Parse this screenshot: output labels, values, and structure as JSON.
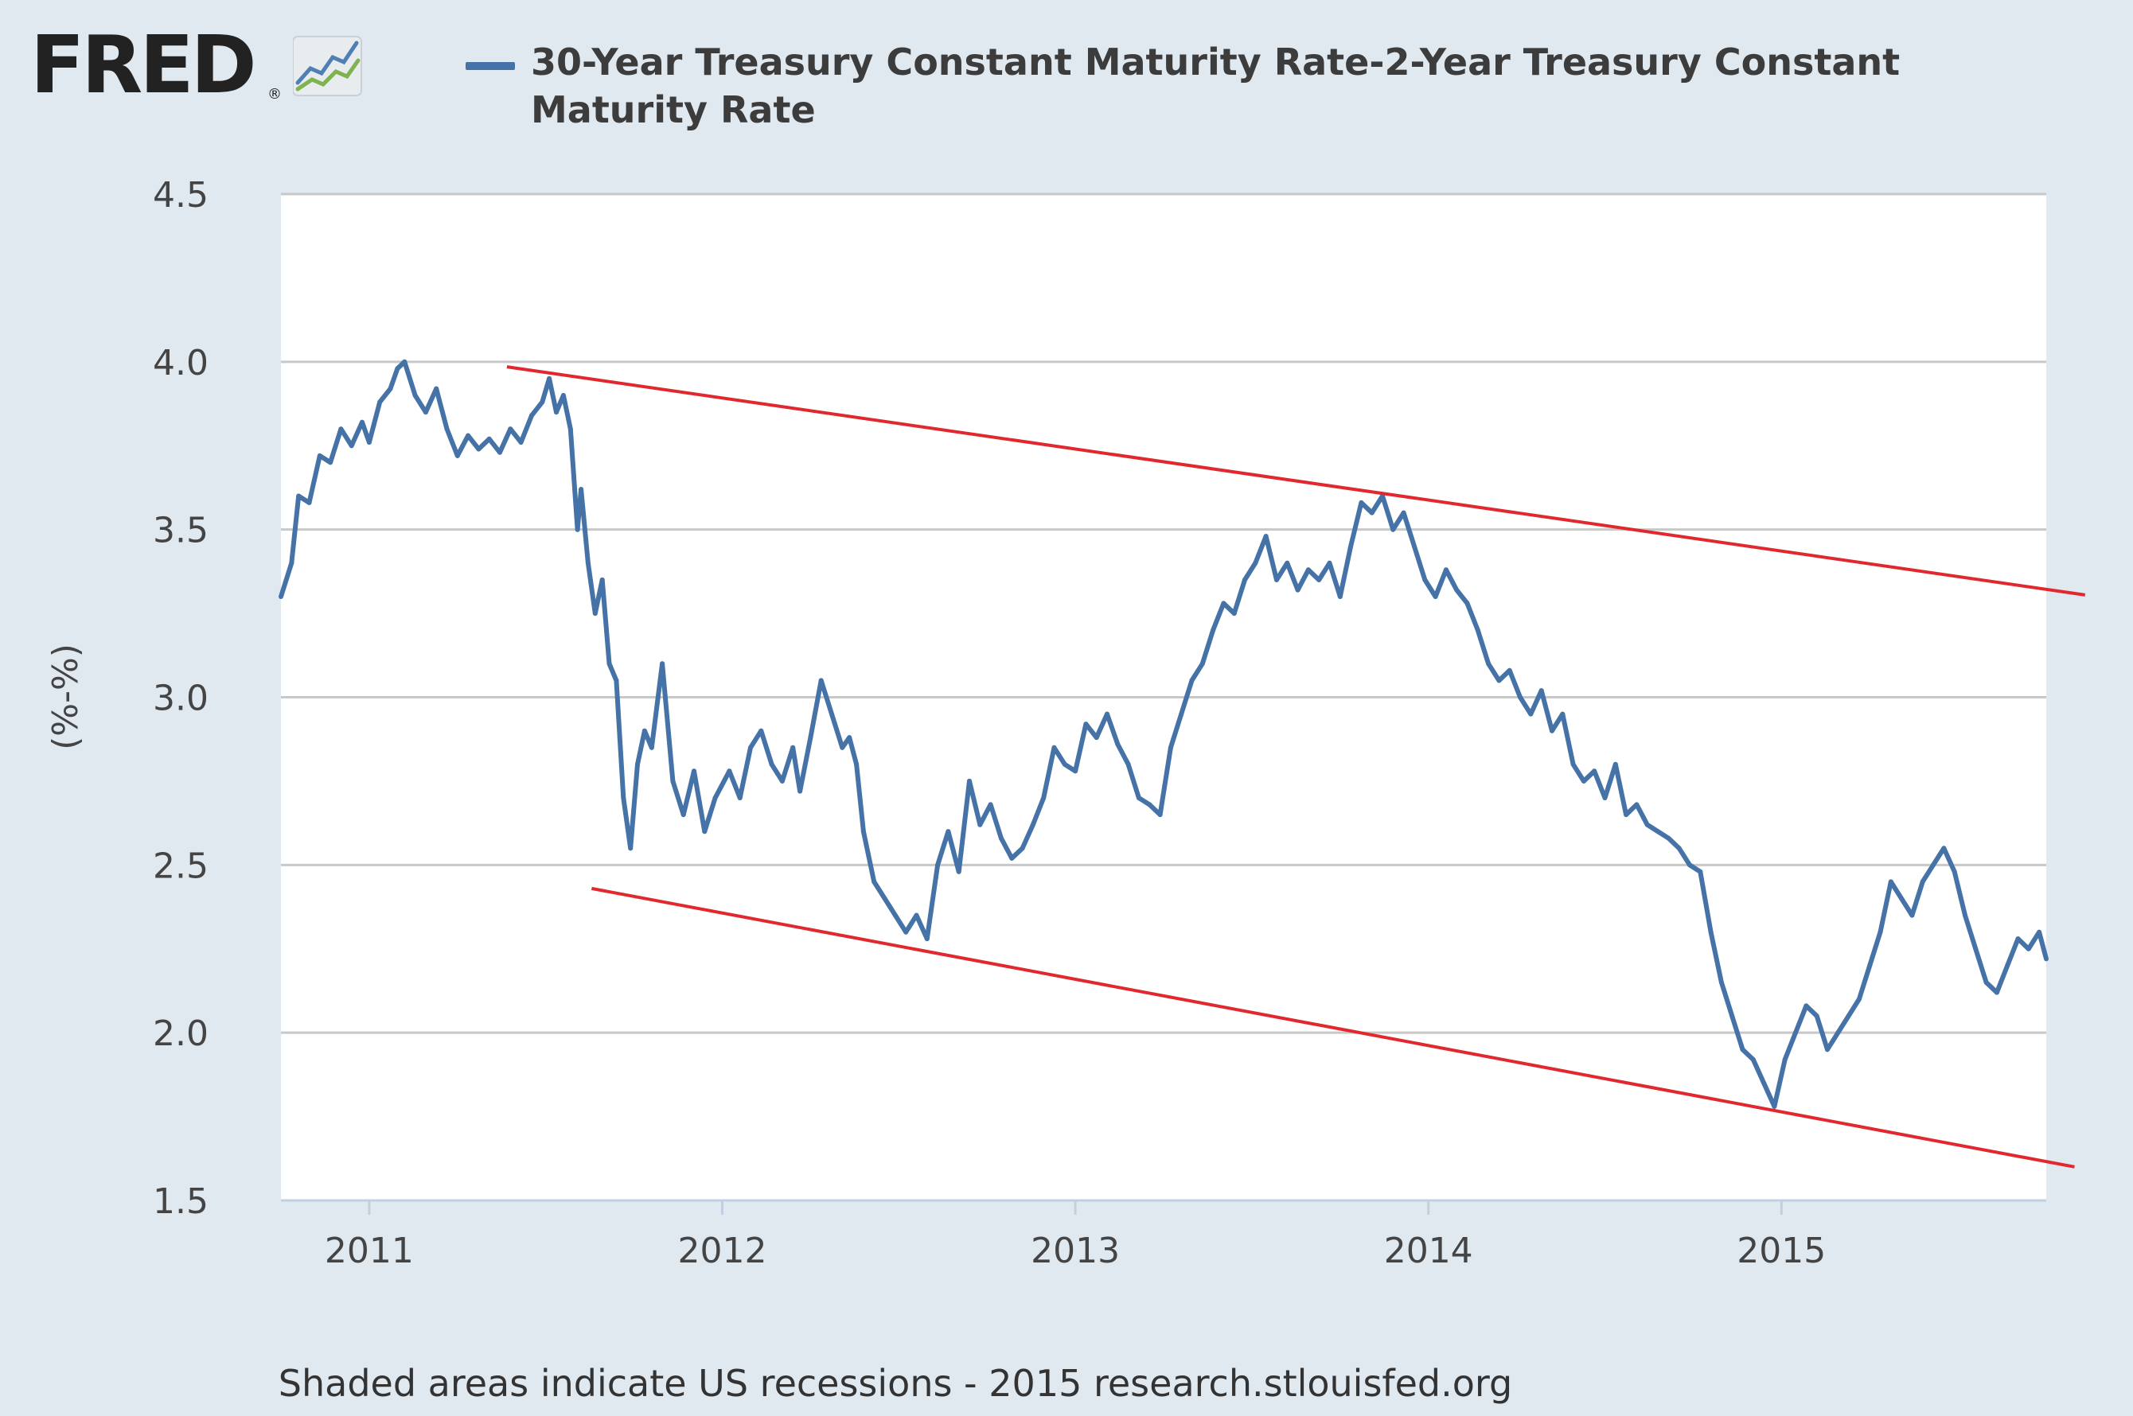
{
  "logo": {
    "text": "FRED",
    "reg": "®"
  },
  "colors": {
    "series": "#4572a7",
    "trend": "#e0282e",
    "plot_bg": "#ffffff",
    "page_bg": "#e1e9f0",
    "grid": "#c8c8c8"
  },
  "chart_data": {
    "type": "line",
    "title": "30-Year Treasury Constant Maturity Rate-2-Year Treasury Constant Maturity Rate",
    "xlabel": "",
    "ylabel": "(%-%)",
    "ylim": [
      1.5,
      4.5
    ],
    "xlim": [
      2010.75,
      2015.75
    ],
    "yticks": [
      "1.5",
      "2.0",
      "2.5",
      "3.0",
      "3.5",
      "4.0",
      "4.5"
    ],
    "xticks": [
      "2011",
      "2012",
      "2013",
      "2014",
      "2015"
    ],
    "series": [
      {
        "name": "30-Year Treasury Constant Maturity Rate-2-Year Treasury Constant Maturity Rate",
        "x": [
          2010.75,
          2010.78,
          2010.8,
          2010.83,
          2010.86,
          2010.89,
          2010.92,
          2010.95,
          2010.98,
          2011.0,
          2011.03,
          2011.06,
          2011.08,
          2011.1,
          2011.13,
          2011.16,
          2011.19,
          2011.22,
          2011.25,
          2011.28,
          2011.31,
          2011.34,
          2011.37,
          2011.4,
          2011.43,
          2011.46,
          2011.49,
          2011.51,
          2011.53,
          2011.55,
          2011.57,
          2011.59,
          2011.6,
          2011.62,
          2011.64,
          2011.66,
          2011.68,
          2011.7,
          2011.72,
          2011.74,
          2011.76,
          2011.78,
          2011.8,
          2011.83,
          2011.86,
          2011.89,
          2011.92,
          2011.95,
          2011.98,
          2012.02,
          2012.05,
          2012.08,
          2012.11,
          2012.14,
          2012.17,
          2012.2,
          2012.22,
          2012.25,
          2012.28,
          2012.31,
          2012.34,
          2012.36,
          2012.38,
          2012.4,
          2012.43,
          2012.46,
          2012.49,
          2012.52,
          2012.55,
          2012.58,
          2012.61,
          2012.64,
          2012.67,
          2012.7,
          2012.73,
          2012.76,
          2012.79,
          2012.82,
          2012.85,
          2012.88,
          2012.91,
          2012.94,
          2012.97,
          2013.0,
          2013.03,
          2013.06,
          2013.09,
          2013.12,
          2013.15,
          2013.18,
          2013.21,
          2013.24,
          2013.27,
          2013.3,
          2013.33,
          2013.36,
          2013.39,
          2013.42,
          2013.45,
          2013.48,
          2013.51,
          2013.54,
          2013.57,
          2013.6,
          2013.63,
          2013.66,
          2013.69,
          2013.72,
          2013.75,
          2013.78,
          2013.81,
          2013.84,
          2013.87,
          2013.9,
          2013.93,
          2013.96,
          2013.99,
          2014.02,
          2014.05,
          2014.08,
          2014.11,
          2014.14,
          2014.17,
          2014.2,
          2014.23,
          2014.26,
          2014.29,
          2014.32,
          2014.35,
          2014.38,
          2014.41,
          2014.44,
          2014.47,
          2014.5,
          2014.53,
          2014.56,
          2014.59,
          2014.62,
          2014.65,
          2014.68,
          2014.71,
          2014.74,
          2014.77,
          2014.8,
          2014.83,
          2014.86,
          2014.89,
          2014.92,
          2014.95,
          2014.98,
          2015.01,
          2015.04,
          2015.07,
          2015.1,
          2015.13,
          2015.16,
          2015.19,
          2015.22,
          2015.25,
          2015.28,
          2015.31,
          2015.34,
          2015.37,
          2015.4,
          2015.43,
          2015.46,
          2015.49,
          2015.52,
          2015.55,
          2015.58,
          2015.61,
          2015.64,
          2015.67,
          2015.7,
          2015.73,
          2015.75
        ],
        "values": [
          3.3,
          3.4,
          3.6,
          3.58,
          3.72,
          3.7,
          3.8,
          3.75,
          3.82,
          3.76,
          3.88,
          3.92,
          3.98,
          4.0,
          3.9,
          3.85,
          3.92,
          3.8,
          3.72,
          3.78,
          3.74,
          3.77,
          3.73,
          3.8,
          3.76,
          3.84,
          3.88,
          3.95,
          3.85,
          3.9,
          3.8,
          3.5,
          3.62,
          3.4,
          3.25,
          3.35,
          3.1,
          3.05,
          2.7,
          2.55,
          2.8,
          2.9,
          2.85,
          3.1,
          2.75,
          2.65,
          2.78,
          2.6,
          2.7,
          2.78,
          2.7,
          2.85,
          2.9,
          2.8,
          2.75,
          2.85,
          2.72,
          2.88,
          3.05,
          2.95,
          2.85,
          2.88,
          2.8,
          2.6,
          2.45,
          2.4,
          2.35,
          2.3,
          2.35,
          2.28,
          2.5,
          2.6,
          2.48,
          2.75,
          2.62,
          2.68,
          2.58,
          2.52,
          2.55,
          2.62,
          2.7,
          2.85,
          2.8,
          2.78,
          2.92,
          2.88,
          2.95,
          2.86,
          2.8,
          2.7,
          2.68,
          2.65,
          2.85,
          2.95,
          3.05,
          3.1,
          3.2,
          3.28,
          3.25,
          3.35,
          3.4,
          3.48,
          3.35,
          3.4,
          3.32,
          3.38,
          3.35,
          3.4,
          3.3,
          3.45,
          3.58,
          3.55,
          3.6,
          3.5,
          3.55,
          3.45,
          3.35,
          3.3,
          3.38,
          3.32,
          3.28,
          3.2,
          3.1,
          3.05,
          3.08,
          3.0,
          2.95,
          3.02,
          2.9,
          2.95,
          2.8,
          2.75,
          2.78,
          2.7,
          2.8,
          2.65,
          2.68,
          2.62,
          2.6,
          2.58,
          2.55,
          2.5,
          2.48,
          2.3,
          2.15,
          2.05,
          1.95,
          1.92,
          1.85,
          1.78,
          1.92,
          2.0,
          2.08,
          2.05,
          1.95,
          2.0,
          2.05,
          2.1,
          2.2,
          2.3,
          2.45,
          2.4,
          2.35,
          2.45,
          2.5,
          2.55,
          2.48,
          2.35,
          2.25,
          2.15,
          2.12,
          2.2,
          2.28,
          2.25,
          2.3,
          2.22
        ]
      }
    ],
    "trendlines": [
      {
        "name": "upper-trendline",
        "x": [
          2011.39,
          2015.86
        ],
        "values": [
          3.985,
          3.305
        ]
      },
      {
        "name": "lower-trendline",
        "x": [
          2011.63,
          2015.83
        ],
        "values": [
          2.43,
          1.6
        ]
      }
    ],
    "note": "Shaded areas indicate US recessions - 2015 research.stlouisfed.org"
  }
}
